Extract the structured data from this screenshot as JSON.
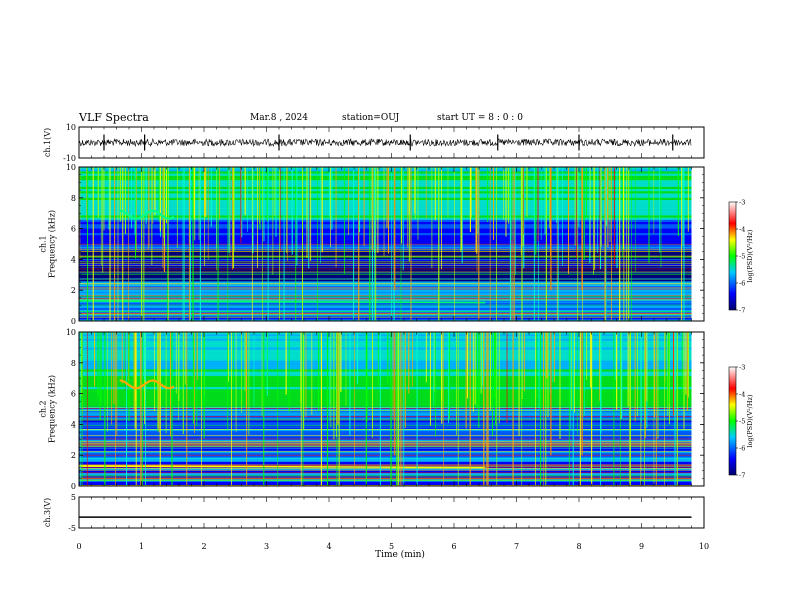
{
  "header": {
    "title": "VLF Spectra",
    "date": "Mar.8 , 2024",
    "station": "station=OUJ",
    "start_ut": "start UT = 8 : 0 : 0"
  },
  "chart_data": [
    {
      "type": "line",
      "panel": "ch1-waveform",
      "ylabel": "ch.1(V)",
      "ylim": [
        -10,
        10
      ],
      "y_ticks": [
        "10",
        "-10"
      ],
      "xlim": [
        0,
        10
      ],
      "description_values": {
        "baseline": 0,
        "noise_amplitude": 0.8,
        "spike_times": [
          0.4,
          1.05,
          3.2,
          5.3,
          6.7,
          8.0,
          9.5
        ]
      },
      "color": "#000000"
    },
    {
      "type": "heatmap",
      "panel": "ch1-spectrogram",
      "ylabel": "ch.1\nFrequency (kHz)",
      "ylim": [
        0,
        10
      ],
      "y_ticks": [
        "0",
        "2",
        "4",
        "6",
        "8",
        "10"
      ],
      "xlim": [
        0,
        10
      ],
      "colorbar": {
        "label": "log(PSD)(V²/Hz)",
        "range": [
          -7,
          -3
        ],
        "ticks": [
          "-3",
          "-4",
          "-5",
          "-6",
          "-7"
        ]
      }
    },
    {
      "type": "heatmap",
      "panel": "ch2-spectrogram",
      "ylabel": "ch.2\nFrequency (kHz)",
      "ylim": [
        0,
        10
      ],
      "y_ticks": [
        "0",
        "2",
        "4",
        "6",
        "8",
        "10"
      ],
      "xlim": [
        0,
        10
      ],
      "colorbar": {
        "label": "log(PSD)(V²/Hz)",
        "range": [
          -7,
          -3
        ],
        "ticks": [
          "-3",
          "-4",
          "-5",
          "-6",
          "-7"
        ]
      }
    },
    {
      "type": "line",
      "panel": "ch3-waveform",
      "ylabel": "ch.3(V)",
      "ylim": [
        -5,
        5
      ],
      "y_ticks": [
        "5",
        "-5"
      ],
      "xlim": [
        0,
        10
      ],
      "values": [
        -1.5,
        -1.5
      ],
      "x": [
        0,
        9.8
      ],
      "color": "#000000"
    }
  ],
  "x_axis": {
    "label": "Time (min)",
    "ticks": [
      "0",
      "1",
      "2",
      "3",
      "4",
      "5",
      "6",
      "7",
      "8",
      "9",
      "10"
    ]
  },
  "palette": [
    "#00006e",
    "#0000ff",
    "#0066ff",
    "#00ccff",
    "#00ffcc",
    "#00ff00",
    "#aaff00",
    "#ffff00",
    "#ffaa00",
    "#ff0000",
    "#ffffff"
  ]
}
